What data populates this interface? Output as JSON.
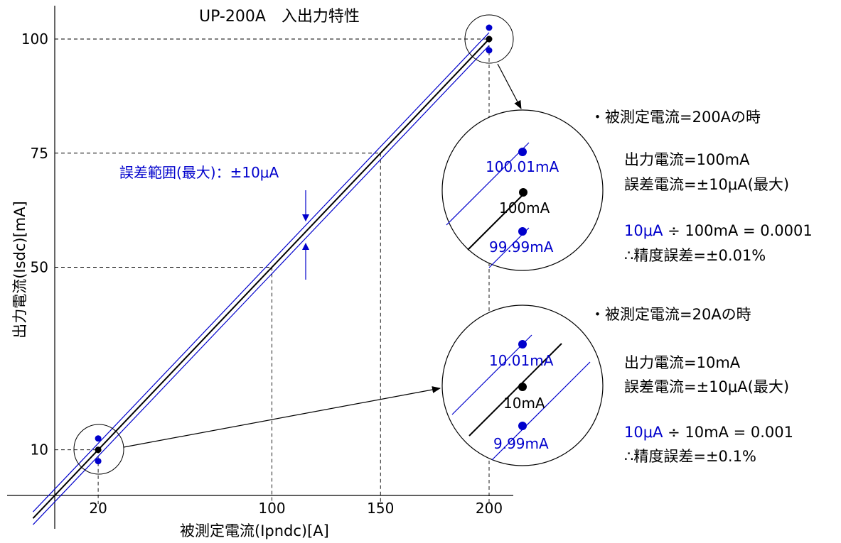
{
  "chart_data": {
    "type": "line",
    "title": "UP-200A　入出力特性",
    "xlabel": "被測定電流(Ipndc)[A]",
    "ylabel": "出力電流(Isdc)[mA]",
    "x_ticks": [
      "20",
      "100",
      "150",
      "200"
    ],
    "y_ticks": [
      "10",
      "50",
      "75",
      "100"
    ],
    "series": [
      {
        "color": "#000000",
        "x": [
          0,
          200
        ],
        "y": [
          0,
          100
        ]
      },
      {
        "color": "#0000cc",
        "x": [
          0,
          200
        ],
        "y": [
          0.01,
          100.01
        ]
      },
      {
        "color": "#0000cc",
        "x": [
          0,
          200
        ],
        "y": [
          -0.01,
          99.99
        ]
      }
    ],
    "error_range_label": "誤差範囲(最大)：±10μA",
    "zoom_200": {
      "upper": "100.01mA",
      "center": "100mA",
      "lower": "99.99mA"
    },
    "zoom_20": {
      "upper": "10.01mA",
      "center": "10mA",
      "lower": "9.99mA"
    },
    "note_200": {
      "heading": "・被測定電流=200Aの時",
      "output": "出力電流=100mA",
      "error": "誤差電流=±10μA(最大)",
      "calc": "10μA ÷ 100mA = 0.0001",
      "accuracy": "∴精度誤差=±0.01%"
    },
    "note_20": {
      "heading": "・被測定電流=20Aの時",
      "output": "出力電流=10mA",
      "error": "誤差電流=±10μA(最大)",
      "calc": "10μA ÷ 10mA = 0.001",
      "accuracy": "∴精度誤差=±0.1%"
    }
  },
  "colors": {
    "main": "#000000",
    "error": "#0000cc"
  }
}
